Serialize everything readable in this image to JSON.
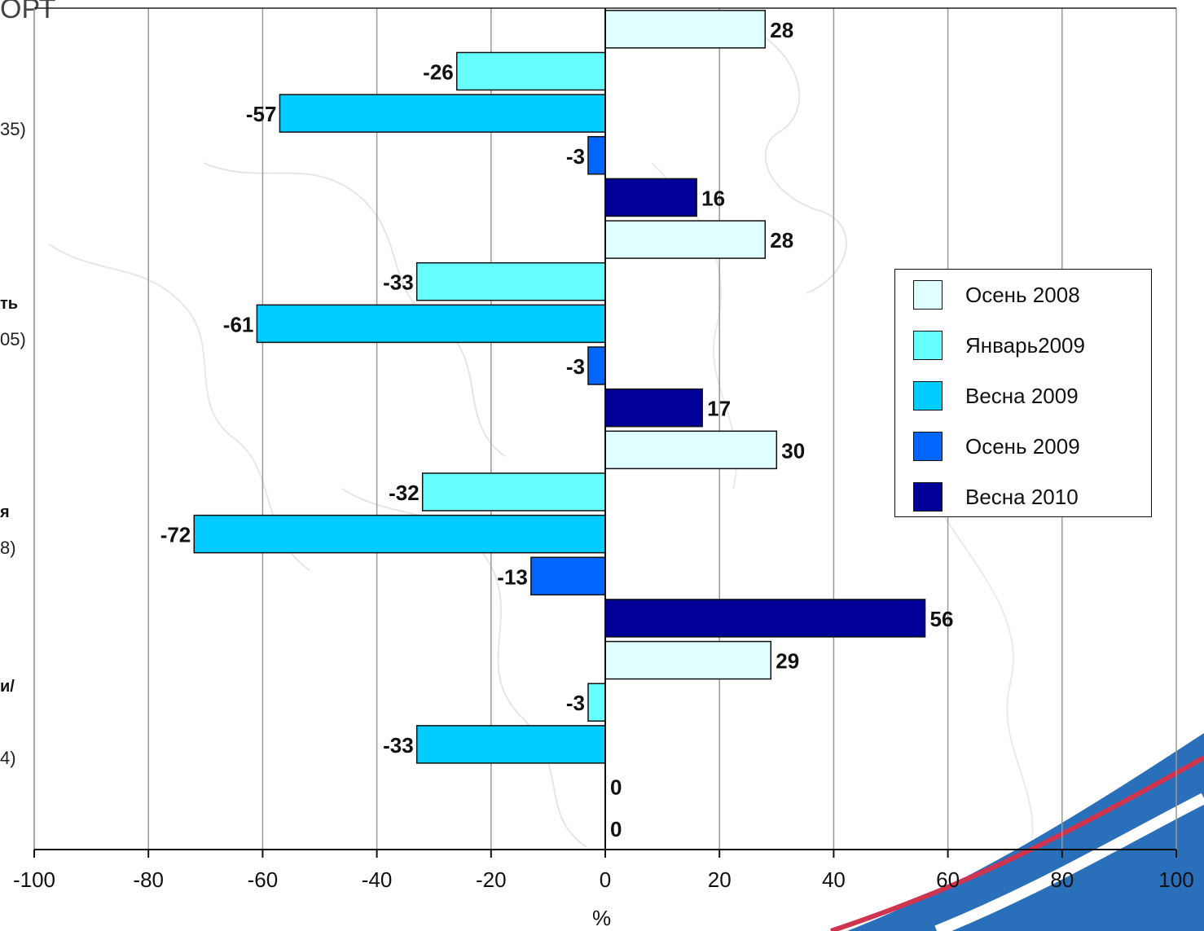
{
  "header_fragment": "ОРТ",
  "row_label_fragments": [
    "35)",
    "ть",
    "05)",
    "я",
    "8)",
    "и/",
    "4)"
  ],
  "chart_data": {
    "type": "bar",
    "orientation": "horizontal",
    "xlabel": "%",
    "xlim": [
      -100,
      100
    ],
    "xticks": [
      -100,
      -80,
      -60,
      -40,
      -20,
      0,
      20,
      40,
      60,
      80,
      100
    ],
    "grid": true,
    "legend_position": "right",
    "group_count": 4,
    "series": [
      {
        "name": "Осень 2008",
        "color": "#E0FFFF",
        "values": [
          28,
          28,
          30,
          29
        ]
      },
      {
        "name": "Январь2009",
        "color": "#66FFFF",
        "values": [
          -26,
          -33,
          -32,
          -3
        ]
      },
      {
        "name": "Весна 2009",
        "color": "#00CCFF",
        "values": [
          -57,
          -61,
          -72,
          -33
        ]
      },
      {
        "name": "Осень 2009",
        "color": "#0066FF",
        "values": [
          -3,
          -3,
          -13,
          0
        ]
      },
      {
        "name": "Весна 2010",
        "color": "#000099",
        "values": [
          16,
          17,
          56,
          0
        ]
      }
    ]
  }
}
